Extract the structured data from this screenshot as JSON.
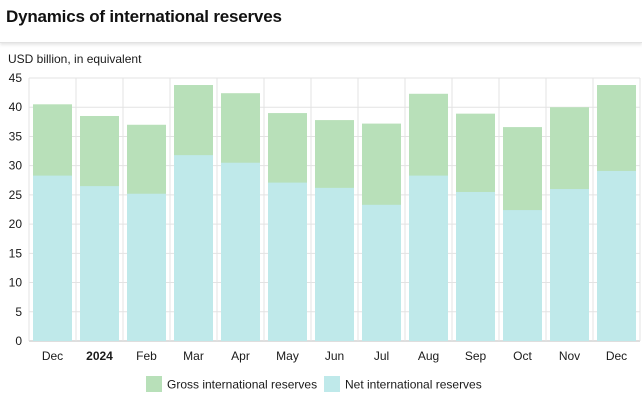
{
  "header": {
    "title": "Dynamics of international reserves"
  },
  "chart_data": {
    "type": "bar",
    "title": "Dynamics of international reserves",
    "ylabel": "USD billion, in equivalent",
    "xlabel": "",
    "ylim": [
      0,
      45
    ],
    "yticks": [
      0,
      5,
      10,
      15,
      20,
      25,
      30,
      35,
      40,
      45
    ],
    "grid": true,
    "legend_position": "bottom",
    "categories": [
      "Dec",
      "2024",
      "Feb",
      "Mar",
      "Apr",
      "May",
      "Jun",
      "Jul",
      "Aug",
      "Sep",
      "Oct",
      "Nov",
      "Dec"
    ],
    "bold_categories": [
      "2024"
    ],
    "series": [
      {
        "name": "Gross international reserves",
        "color": "#b8e0b9",
        "values": [
          40.5,
          38.5,
          37.0,
          43.8,
          42.4,
          39.0,
          37.8,
          37.2,
          42.3,
          38.9,
          36.6,
          40.0,
          43.8
        ]
      },
      {
        "name": "Net international reserves",
        "color": "#bfe9ea",
        "values": [
          28.3,
          26.5,
          25.2,
          31.8,
          30.5,
          27.1,
          26.2,
          23.3,
          28.3,
          25.5,
          22.4,
          26.0,
          29.1
        ]
      }
    ]
  }
}
